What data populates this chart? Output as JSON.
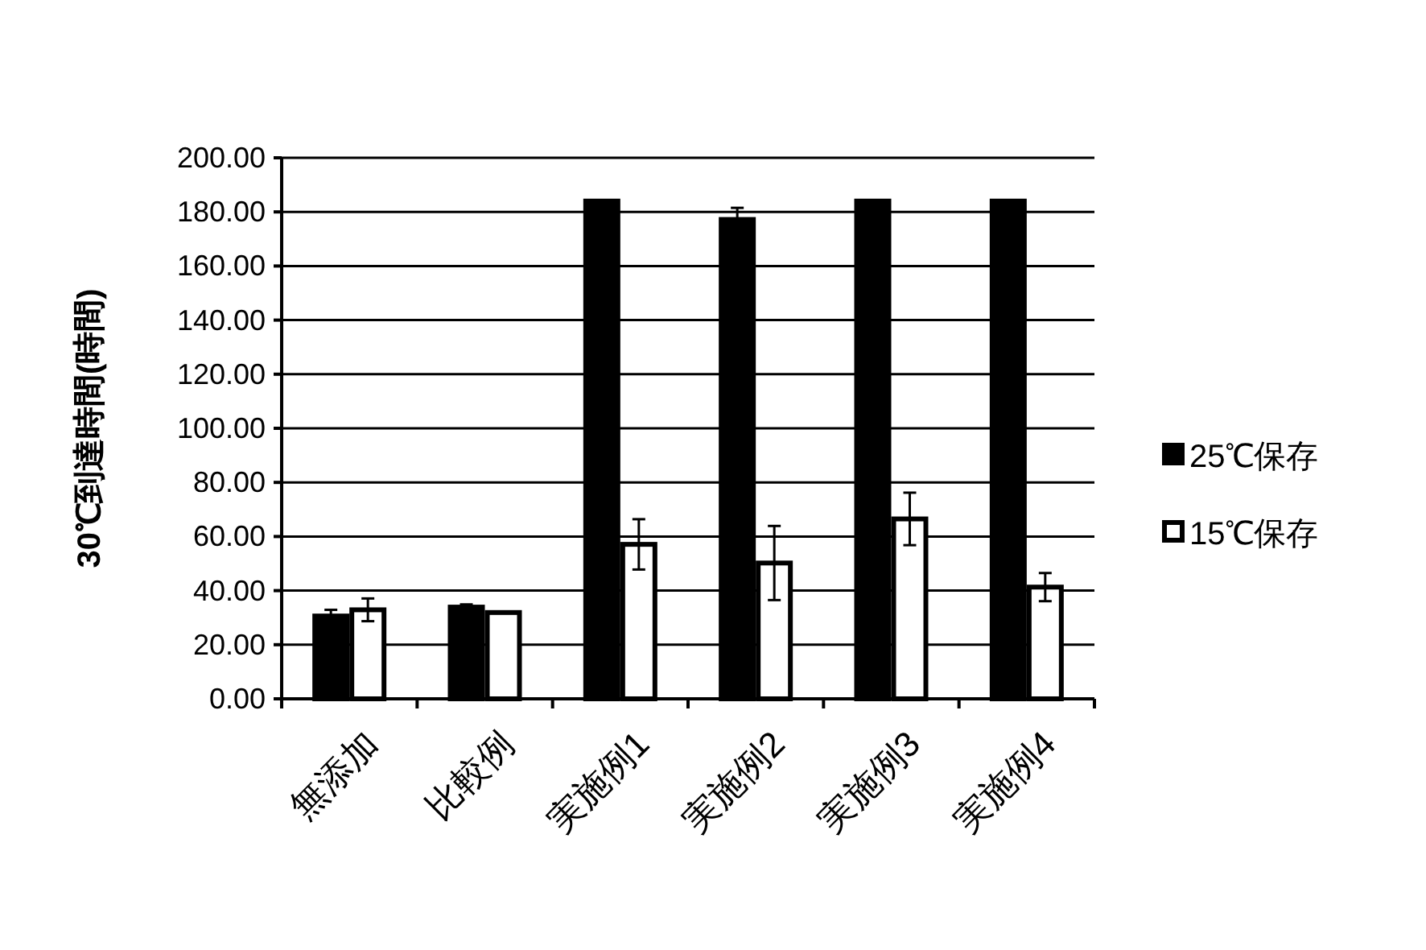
{
  "chart_data": {
    "type": "bar",
    "ylabel": "30℃到達時間(時間)",
    "categories": [
      "無添加",
      "比較例",
      "実施例1",
      "実施例2",
      "実施例3",
      "実施例4"
    ],
    "series": [
      {
        "name": "25℃保存",
        "color": "#000000",
        "values": [
          30.6,
          33.9,
          184,
          177.2,
          184,
          184
        ],
        "errors": [
          2.3,
          1,
          null,
          4.3,
          null,
          null
        ]
      },
      {
        "name": "15℃保存",
        "color": "#ffffff",
        "values": [
          32.9,
          31.9,
          57.1,
          50.2,
          66.5,
          41.3
        ],
        "errors": [
          4.2,
          null,
          9.3,
          13.7,
          9.7,
          5.2
        ]
      }
    ],
    "ylim": [
      0,
      200
    ],
    "yticks": [
      {
        "value": 0,
        "label": "0.00"
      },
      {
        "value": 20,
        "label": "20.00"
      },
      {
        "value": 40,
        "label": "40.00"
      },
      {
        "value": 60,
        "label": "60.00"
      },
      {
        "value": 80,
        "label": "80.00"
      },
      {
        "value": 100,
        "label": "100.00"
      },
      {
        "value": 120,
        "label": "120.00"
      },
      {
        "value": 140,
        "label": "140.00"
      },
      {
        "value": 160,
        "label": "160.00"
      },
      {
        "value": 180,
        "label": "180.00"
      },
      {
        "value": 200,
        "label": "200.00"
      }
    ],
    "grid": "y",
    "legend": "right"
  }
}
